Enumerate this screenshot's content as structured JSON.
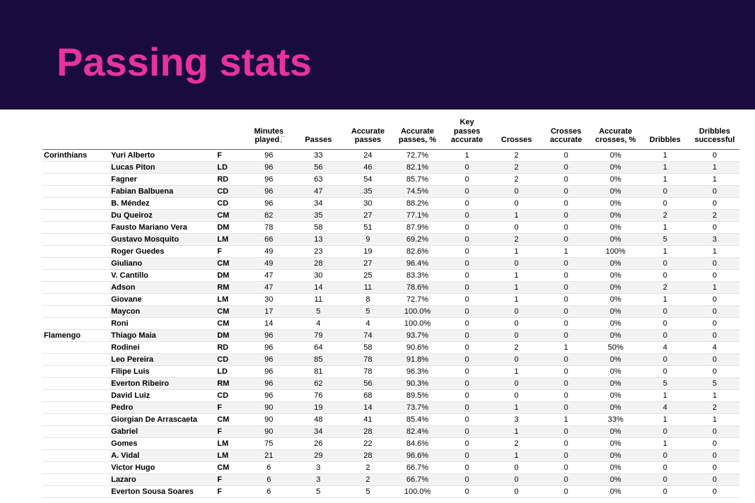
{
  "header": {
    "title": "Passing stats",
    "background_color": "#1a0b3d",
    "title_color": "#e6339e"
  },
  "table": {
    "columns": [
      {
        "key": "minutes",
        "label": "Minutes\nplayed",
        "sort_indicator": true
      },
      {
        "key": "passes",
        "label": "Passes"
      },
      {
        "key": "acc_passes",
        "label": "Accurate\npasses"
      },
      {
        "key": "acc_passes_pct",
        "label": "Accurate\npasses, %"
      },
      {
        "key": "key_passes",
        "label": "Key\npasses\naccurate"
      },
      {
        "key": "crosses",
        "label": "Crosses"
      },
      {
        "key": "crosses_acc",
        "label": "Crosses\naccurate"
      },
      {
        "key": "crosses_pct",
        "label": "Accurate\ncrosses, %"
      },
      {
        "key": "dribbles",
        "label": "Dribbles"
      },
      {
        "key": "dribbles_succ",
        "label": "Dribbles\nsuccessful"
      }
    ],
    "groups": [
      {
        "team": "Corinthians",
        "rows": [
          {
            "player": "Yuri Alberto",
            "pos": "F",
            "minutes": "96",
            "passes": "33",
            "acc_passes": "24",
            "acc_passes_pct": "72.7%",
            "key_passes": "1",
            "crosses": "2",
            "crosses_acc": "0",
            "crosses_pct": "0%",
            "dribbles": "1",
            "dribbles_succ": "0"
          },
          {
            "player": "Lucas Piton",
            "pos": "LD",
            "minutes": "96",
            "passes": "56",
            "acc_passes": "46",
            "acc_passes_pct": "82.1%",
            "key_passes": "0",
            "crosses": "2",
            "crosses_acc": "0",
            "crosses_pct": "0%",
            "dribbles": "1",
            "dribbles_succ": "1"
          },
          {
            "player": "Fagner",
            "pos": "RD",
            "minutes": "96",
            "passes": "63",
            "acc_passes": "54",
            "acc_passes_pct": "85.7%",
            "key_passes": "0",
            "crosses": "2",
            "crosses_acc": "0",
            "crosses_pct": "0%",
            "dribbles": "1",
            "dribbles_succ": "1"
          },
          {
            "player": "Fabian Balbuena",
            "pos": "CD",
            "minutes": "96",
            "passes": "47",
            "acc_passes": "35",
            "acc_passes_pct": "74.5%",
            "key_passes": "0",
            "crosses": "0",
            "crosses_acc": "0",
            "crosses_pct": "0%",
            "dribbles": "0",
            "dribbles_succ": "0"
          },
          {
            "player": "B. Méndez",
            "pos": "CD",
            "minutes": "96",
            "passes": "34",
            "acc_passes": "30",
            "acc_passes_pct": "88.2%",
            "key_passes": "0",
            "crosses": "0",
            "crosses_acc": "0",
            "crosses_pct": "0%",
            "dribbles": "0",
            "dribbles_succ": "0"
          },
          {
            "player": "Du Queiroz",
            "pos": "CM",
            "minutes": "82",
            "passes": "35",
            "acc_passes": "27",
            "acc_passes_pct": "77.1%",
            "key_passes": "0",
            "crosses": "1",
            "crosses_acc": "0",
            "crosses_pct": "0%",
            "dribbles": "2",
            "dribbles_succ": "2"
          },
          {
            "player": "Fausto Mariano Vera",
            "pos": "DM",
            "minutes": "78",
            "passes": "58",
            "acc_passes": "51",
            "acc_passes_pct": "87.9%",
            "key_passes": "0",
            "crosses": "0",
            "crosses_acc": "0",
            "crosses_pct": "0%",
            "dribbles": "1",
            "dribbles_succ": "0"
          },
          {
            "player": "Gustavo Mosquito",
            "pos": "LM",
            "minutes": "66",
            "passes": "13",
            "acc_passes": "9",
            "acc_passes_pct": "69.2%",
            "key_passes": "0",
            "crosses": "2",
            "crosses_acc": "0",
            "crosses_pct": "0%",
            "dribbles": "5",
            "dribbles_succ": "3"
          },
          {
            "player": "Roger Guedes",
            "pos": "F",
            "minutes": "49",
            "passes": "23",
            "acc_passes": "19",
            "acc_passes_pct": "82.6%",
            "key_passes": "0",
            "crosses": "1",
            "crosses_acc": "1",
            "crosses_pct": "100%",
            "dribbles": "1",
            "dribbles_succ": "1"
          },
          {
            "player": "Giuliano",
            "pos": "CM",
            "minutes": "49",
            "passes": "28",
            "acc_passes": "27",
            "acc_passes_pct": "96.4%",
            "key_passes": "0",
            "crosses": "0",
            "crosses_acc": "0",
            "crosses_pct": "0%",
            "dribbles": "0",
            "dribbles_succ": "0"
          },
          {
            "player": "V. Cantillo",
            "pos": "DM",
            "minutes": "47",
            "passes": "30",
            "acc_passes": "25",
            "acc_passes_pct": "83.3%",
            "key_passes": "0",
            "crosses": "1",
            "crosses_acc": "0",
            "crosses_pct": "0%",
            "dribbles": "0",
            "dribbles_succ": "0"
          },
          {
            "player": "Adson",
            "pos": "RM",
            "minutes": "47",
            "passes": "14",
            "acc_passes": "11",
            "acc_passes_pct": "78.6%",
            "key_passes": "0",
            "crosses": "1",
            "crosses_acc": "0",
            "crosses_pct": "0%",
            "dribbles": "2",
            "dribbles_succ": "1"
          },
          {
            "player": "Giovane",
            "pos": "LM",
            "minutes": "30",
            "passes": "11",
            "acc_passes": "8",
            "acc_passes_pct": "72.7%",
            "key_passes": "0",
            "crosses": "1",
            "crosses_acc": "0",
            "crosses_pct": "0%",
            "dribbles": "1",
            "dribbles_succ": "0"
          },
          {
            "player": "Maycon",
            "pos": "CM",
            "minutes": "17",
            "passes": "5",
            "acc_passes": "5",
            "acc_passes_pct": "100.0%",
            "key_passes": "0",
            "crosses": "0",
            "crosses_acc": "0",
            "crosses_pct": "0%",
            "dribbles": "0",
            "dribbles_succ": "0"
          },
          {
            "player": "Roni",
            "pos": "CM",
            "minutes": "14",
            "passes": "4",
            "acc_passes": "4",
            "acc_passes_pct": "100.0%",
            "key_passes": "0",
            "crosses": "0",
            "crosses_acc": "0",
            "crosses_pct": "0%",
            "dribbles": "0",
            "dribbles_succ": "0"
          }
        ]
      },
      {
        "team": "Flamengo",
        "rows": [
          {
            "player": "Thiago Maia",
            "pos": "DM",
            "minutes": "96",
            "passes": "79",
            "acc_passes": "74",
            "acc_passes_pct": "93.7%",
            "key_passes": "0",
            "crosses": "0",
            "crosses_acc": "0",
            "crosses_pct": "0%",
            "dribbles": "0",
            "dribbles_succ": "0"
          },
          {
            "player": "Rodinei",
            "pos": "RD",
            "minutes": "96",
            "passes": "64",
            "acc_passes": "58",
            "acc_passes_pct": "90.6%",
            "key_passes": "0",
            "crosses": "2",
            "crosses_acc": "1",
            "crosses_pct": "50%",
            "dribbles": "4",
            "dribbles_succ": "4"
          },
          {
            "player": "Leo Pereira",
            "pos": "CD",
            "minutes": "96",
            "passes": "85",
            "acc_passes": "78",
            "acc_passes_pct": "91.8%",
            "key_passes": "0",
            "crosses": "0",
            "crosses_acc": "0",
            "crosses_pct": "0%",
            "dribbles": "0",
            "dribbles_succ": "0"
          },
          {
            "player": "Filipe Luis",
            "pos": "LD",
            "minutes": "96",
            "passes": "81",
            "acc_passes": "78",
            "acc_passes_pct": "96.3%",
            "key_passes": "0",
            "crosses": "1",
            "crosses_acc": "0",
            "crosses_pct": "0%",
            "dribbles": "0",
            "dribbles_succ": "0"
          },
          {
            "player": "Everton Ribeiro",
            "pos": "RM",
            "minutes": "96",
            "passes": "62",
            "acc_passes": "56",
            "acc_passes_pct": "90.3%",
            "key_passes": "0",
            "crosses": "0",
            "crosses_acc": "0",
            "crosses_pct": "0%",
            "dribbles": "5",
            "dribbles_succ": "5"
          },
          {
            "player": "David Luiz",
            "pos": "CD",
            "minutes": "96",
            "passes": "76",
            "acc_passes": "68",
            "acc_passes_pct": "89.5%",
            "key_passes": "0",
            "crosses": "0",
            "crosses_acc": "0",
            "crosses_pct": "0%",
            "dribbles": "1",
            "dribbles_succ": "1"
          },
          {
            "player": "Pedro",
            "pos": "F",
            "minutes": "90",
            "passes": "19",
            "acc_passes": "14",
            "acc_passes_pct": "73.7%",
            "key_passes": "0",
            "crosses": "1",
            "crosses_acc": "0",
            "crosses_pct": "0%",
            "dribbles": "4",
            "dribbles_succ": "2"
          },
          {
            "player": "Giorgian De Arrascaeta",
            "pos": "CM",
            "minutes": "90",
            "passes": "48",
            "acc_passes": "41",
            "acc_passes_pct": "85.4%",
            "key_passes": "0",
            "crosses": "3",
            "crosses_acc": "1",
            "crosses_pct": "33%",
            "dribbles": "1",
            "dribbles_succ": "1"
          },
          {
            "player": "Gabriel",
            "pos": "F",
            "minutes": "90",
            "passes": "34",
            "acc_passes": "28",
            "acc_passes_pct": "82.4%",
            "key_passes": "0",
            "crosses": "1",
            "crosses_acc": "0",
            "crosses_pct": "0%",
            "dribbles": "0",
            "dribbles_succ": "0"
          },
          {
            "player": "Gomes",
            "pos": "LM",
            "minutes": "75",
            "passes": "26",
            "acc_passes": "22",
            "acc_passes_pct": "84.6%",
            "key_passes": "0",
            "crosses": "2",
            "crosses_acc": "0",
            "crosses_pct": "0%",
            "dribbles": "1",
            "dribbles_succ": "0"
          },
          {
            "player": "A. Vidal",
            "pos": "LM",
            "minutes": "21",
            "passes": "29",
            "acc_passes": "28",
            "acc_passes_pct": "96.6%",
            "key_passes": "0",
            "crosses": "1",
            "crosses_acc": "0",
            "crosses_pct": "0%",
            "dribbles": "0",
            "dribbles_succ": "0"
          },
          {
            "player": "Victor Hugo",
            "pos": "CM",
            "minutes": "6",
            "passes": "3",
            "acc_passes": "2",
            "acc_passes_pct": "66.7%",
            "key_passes": "0",
            "crosses": "0",
            "crosses_acc": "0",
            "crosses_pct": "0%",
            "dribbles": "0",
            "dribbles_succ": "0"
          },
          {
            "player": "Lazaro",
            "pos": "F",
            "minutes": "6",
            "passes": "3",
            "acc_passes": "2",
            "acc_passes_pct": "66.7%",
            "key_passes": "0",
            "crosses": "0",
            "crosses_acc": "0",
            "crosses_pct": "0%",
            "dribbles": "0",
            "dribbles_succ": "0"
          },
          {
            "player": "Everton Sousa Soares",
            "pos": "F",
            "minutes": "6",
            "passes": "5",
            "acc_passes": "5",
            "acc_passes_pct": "100.0%",
            "key_passes": "0",
            "crosses": "0",
            "crosses_acc": "0",
            "crosses_pct": "0%",
            "dribbles": "0",
            "dribbles_succ": "0"
          }
        ]
      }
    ]
  }
}
